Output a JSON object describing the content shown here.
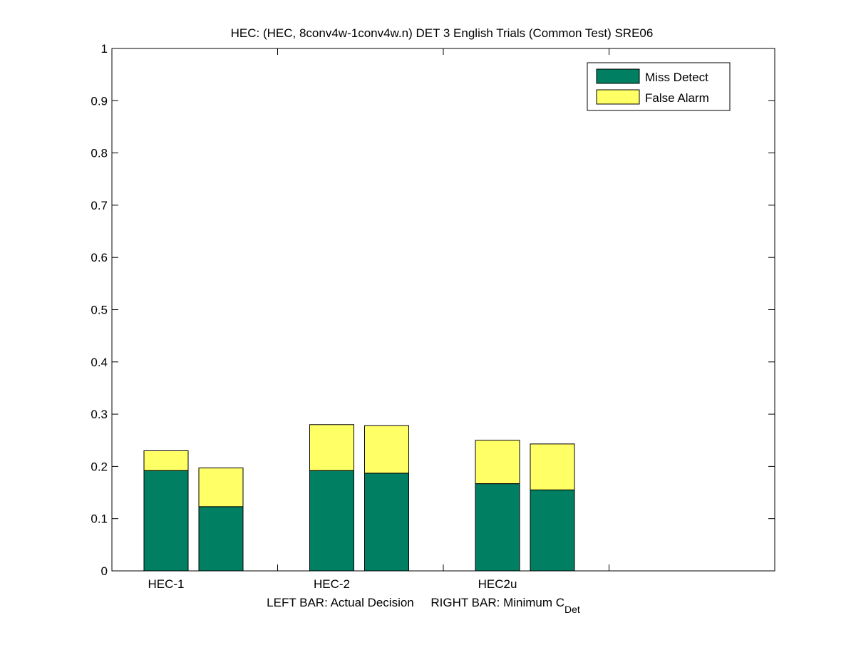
{
  "colors": {
    "miss_detect": "#007f62",
    "false_alarm": "#ffff66",
    "axis": "#000000",
    "background": "#ffffff"
  },
  "chart_data": {
    "type": "bar",
    "stacked": true,
    "title": "HEC: (HEC, 8conv4w-1conv4w.n) DET 3 English Trials (Common Test) SRE06",
    "xlabel": {
      "prefix": "LEFT BAR: Actual Decision     RIGHT BAR: Minimum C",
      "subscript": "Det"
    },
    "ylabel": "",
    "ylim": [
      0,
      1
    ],
    "yticks": [
      "0",
      "0.1",
      "0.2",
      "0.3",
      "0.4",
      "0.5",
      "0.6",
      "0.7",
      "0.8",
      "0.9",
      "1"
    ],
    "categories": [
      "HEC-1",
      "HEC-2",
      "HEC2u"
    ],
    "bars_per_category": [
      "Actual Decision",
      "Minimum C_Det"
    ],
    "series": [
      {
        "name": "Miss Detect",
        "values": [
          [
            0.192,
            0.123
          ],
          [
            0.192,
            0.187
          ],
          [
            0.167,
            0.155
          ]
        ]
      },
      {
        "name": "False Alarm",
        "values": [
          [
            0.038,
            0.074
          ],
          [
            0.088,
            0.091
          ],
          [
            0.083,
            0.088
          ]
        ]
      }
    ],
    "totals": [
      [
        0.23,
        0.197
      ],
      [
        0.28,
        0.278
      ],
      [
        0.25,
        0.243
      ]
    ],
    "legend_position": "top-right",
    "grid": false
  }
}
